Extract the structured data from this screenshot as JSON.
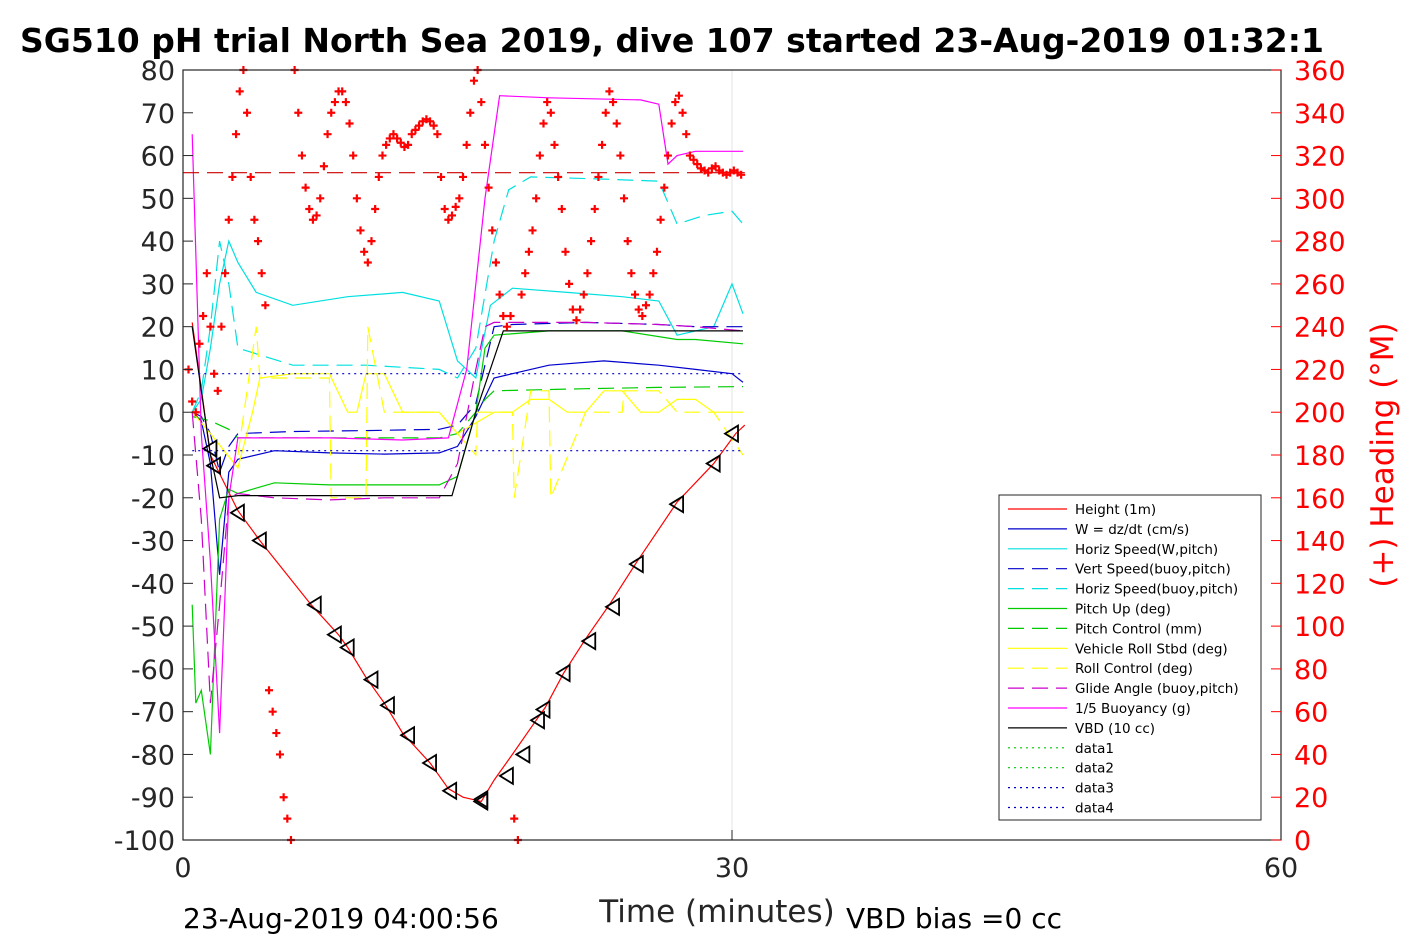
{
  "chart_data": {
    "type": "line",
    "title": "SG510 pH trial North Sea 2019, dive 107 started 23-Aug-2019 01:32:1",
    "xlabel": "Time (minutes)",
    "ylabel_right": "(+) Heading (°M)",
    "xlim": [
      0,
      60
    ],
    "ylim": [
      -100,
      80
    ],
    "ylim_right": [
      0,
      360
    ],
    "x_ticks": [
      "0",
      "30",
      "60"
    ],
    "y_ticks": [
      "80",
      "70",
      "60",
      "50",
      "40",
      "30",
      "20",
      "10",
      "0",
      "-10",
      "-20",
      "-30",
      "-40",
      "-50",
      "-60",
      "-70",
      "-80",
      "-90",
      "-100"
    ],
    "y_right_ticks": [
      "360",
      "340",
      "320",
      "300",
      "280",
      "260",
      "240",
      "220",
      "200",
      "180",
      "160",
      "140",
      "120",
      "100",
      "80",
      "60",
      "40",
      "20",
      "0"
    ],
    "grid": true,
    "legend_position": "lower-right",
    "footer_left": "23-Aug-2019 04:00:56",
    "footer_right": "VBD bias =0 cc",
    "heading_reference_line": 312,
    "series": [
      {
        "name": "Height (1m)",
        "color": "#ff0000",
        "style": "solid",
        "x": [
          0.5,
          1.5,
          3.0,
          4.2,
          7.0,
          8.5,
          9.0,
          10.0,
          11.0,
          12.0,
          13.5,
          14.5,
          15.3,
          16.3,
          17.0,
          18.0,
          19.3,
          19.8,
          20.8,
          22.0,
          23.3,
          24.8,
          27.0,
          29.0,
          30.2,
          30.7
        ],
        "y": [
          21,
          -10,
          -23,
          -30,
          -45,
          -52,
          -55,
          -62,
          -68,
          -75,
          -82,
          -88,
          -90,
          -91,
          -86,
          -80,
          -72,
          -69,
          -61,
          -53,
          -45,
          -35,
          -21,
          -12,
          -5,
          -3
        ]
      },
      {
        "name": "W = dz/dt (cm/s)",
        "color": "#0000cc",
        "style": "solid",
        "x": [
          0.5,
          1.0,
          1.5,
          2.0,
          2.5,
          3.0,
          5.0,
          8.0,
          11.0,
          14.0,
          15.0,
          16.0,
          17.0,
          18.0,
          20.0,
          23.0,
          26.0,
          28.0,
          30.0,
          30.6
        ],
        "y": [
          0,
          -2,
          -12,
          -38,
          -14,
          -11,
          -9,
          -9.5,
          -9.8,
          -9.5,
          -8,
          -1,
          8,
          9,
          11,
          12,
          11,
          10,
          9,
          7
        ]
      },
      {
        "name": "Horiz Speed(W,pitch)",
        "color": "#00e0e0",
        "style": "solid",
        "x": [
          0.5,
          1.0,
          1.5,
          2.0,
          2.5,
          3.0,
          4.0,
          6.0,
          9.0,
          12.0,
          14.0,
          15.0,
          16.0,
          16.8,
          18.0,
          21.0,
          24.0,
          26.0,
          27.0,
          29.0,
          30.0,
          30.6
        ],
        "y": [
          0,
          3,
          15,
          30,
          40,
          35,
          28,
          25,
          27,
          28,
          26,
          12,
          8,
          25,
          29,
          28,
          27,
          26,
          18,
          20,
          30,
          23
        ]
      },
      {
        "name": "Vert Speed(buoy,pitch)",
        "color": "#0000cc",
        "style": "dashed",
        "x": [
          0.5,
          1.0,
          1.5,
          2.0,
          2.5,
          3.0,
          6.0,
          10.0,
          14.0,
          15.0,
          16.0,
          17.0,
          18.0,
          22.0,
          26.0,
          28.0,
          30.6
        ],
        "y": [
          0,
          -1,
          -5,
          -14,
          -8,
          -5,
          -4.5,
          -4.3,
          -4,
          -3,
          2,
          20,
          20.5,
          21,
          20.5,
          20,
          20
        ]
      },
      {
        "name": "Horiz Speed(buoy,pitch)",
        "color": "#00e0e0",
        "style": "dashed",
        "x": [
          0.5,
          1.0,
          1.5,
          2.0,
          2.5,
          3.0,
          6.0,
          10.0,
          14.0,
          15.0,
          16.0,
          17.0,
          17.8,
          19.0,
          23.0,
          26.0,
          27.0,
          28.5,
          30.0,
          30.6
        ],
        "y": [
          0,
          5,
          20,
          40,
          30,
          15,
          11,
          11,
          10,
          8,
          15,
          40,
          52,
          55,
          54.5,
          54,
          44,
          46,
          47,
          44
        ]
      },
      {
        "name": "Pitch Up (deg)",
        "color": "#00cc00",
        "style": "solid",
        "x": [
          0.5,
          0.7,
          1.0,
          1.5,
          2.0,
          2.5,
          3.0,
          5.0,
          8.0,
          11.0,
          14.0,
          15.0,
          16.0,
          16.5,
          17.0,
          20.0,
          24.0,
          27.0,
          28.0,
          30.6
        ],
        "y": [
          -45,
          -68,
          -65,
          -80,
          -25,
          -18,
          -19,
          -16.5,
          -17,
          -17,
          -17,
          -15,
          0,
          15,
          18,
          19,
          19,
          17,
          17,
          16
        ]
      },
      {
        "name": "Pitch Control (mm)",
        "color": "#00cc00",
        "style": "dashed",
        "x": [
          0.5,
          1.5,
          2.5,
          3.0,
          8.0,
          14.0,
          15.0,
          16.0,
          16.5,
          17.0,
          22.0,
          26.0,
          30.6
        ],
        "y": [
          -1,
          -2,
          -4,
          -6,
          -6,
          -6,
          -5,
          0,
          3,
          5,
          5.5,
          5.8,
          6
        ]
      },
      {
        "name": "Vehicle Roll Stbd (deg)",
        "color": "#ffff00",
        "style": "solid",
        "x": [
          0.5,
          1.5,
          3.0,
          3.8,
          4.2,
          6.0,
          8.0,
          9.0,
          9.5,
          10.0,
          11.0,
          12.0,
          14.0,
          15.0,
          17.0,
          18.0,
          19.0,
          20.0,
          21.0,
          22.0,
          23.0,
          24.0,
          25.0,
          26.0,
          27.0,
          28.0,
          29.0,
          30.6
        ],
        "y": [
          0,
          -5,
          -13,
          0,
          8,
          9,
          9,
          0,
          0,
          9,
          9,
          0,
          0,
          -5,
          0,
          0,
          3,
          3,
          0,
          0,
          5,
          5,
          0,
          0,
          3,
          3,
          0,
          0
        ]
      },
      {
        "name": "Roll Control (deg)",
        "color": "#ffff00",
        "style": "dashed",
        "x": [
          3.0,
          4.0,
          4.2,
          6.0,
          8.0,
          8.1,
          10.0,
          10.1,
          11.0,
          14.0,
          16.0,
          16.1,
          18.0,
          18.1,
          19.0,
          20.0,
          20.1,
          22.0,
          24.0,
          24.1,
          26.0,
          27.0,
          29.0,
          30.6
        ],
        "y": [
          -10,
          20,
          8,
          8,
          8,
          -20,
          -20,
          20,
          0,
          0,
          -10,
          0,
          0,
          -20,
          5,
          5,
          -20,
          0,
          0,
          5,
          5,
          0,
          0,
          -10
        ]
      },
      {
        "name": "Glide Angle (buoy,pitch)",
        "color": "#cc00cc",
        "style": "dashed",
        "x": [
          0.5,
          1.0,
          1.5,
          2.0,
          2.5,
          3.0,
          5.0,
          8.0,
          11.0,
          14.0,
          15.0,
          16.0,
          16.5,
          17.0,
          22.0,
          26.0,
          28.0,
          30.6
        ],
        "y": [
          0,
          -25,
          -68,
          -45,
          -20,
          -19,
          -20,
          -20.5,
          -20,
          -20,
          -12,
          10,
          20,
          21,
          21,
          20.5,
          20,
          19
        ]
      },
      {
        "name": "1/5 Buoyancy (g)",
        "color": "#ff00ff",
        "style": "solid",
        "x": [
          0.5,
          1.0,
          1.5,
          2.0,
          2.5,
          3.0,
          4.0,
          8.0,
          12.0,
          14.5,
          15.5,
          16.5,
          17.3,
          20.0,
          25.0,
          26.0,
          26.5,
          27.0,
          28.0,
          30.6
        ],
        "y": [
          65,
          -5,
          -35,
          -75,
          -20,
          -6,
          -6,
          -6,
          -6.5,
          -6,
          10,
          50,
          74,
          73.5,
          73,
          72,
          58,
          60,
          61,
          61
        ]
      },
      {
        "name": "VBD (10 cc)",
        "color": "#000000",
        "style": "solid",
        "x": [
          0.5,
          1.0,
          1.5,
          2.0,
          3.0,
          8.0,
          13.0,
          14.7,
          16.0,
          17.5,
          20.0,
          25.0,
          30.6
        ],
        "y": [
          20,
          5,
          -10,
          -20,
          -19.5,
          -19.5,
          -19.5,
          -19.5,
          0,
          19,
          19,
          19,
          19
        ]
      },
      {
        "name": "data1",
        "color": "#00cc00",
        "style": "dotted",
        "x": [],
        "y": []
      },
      {
        "name": "data2",
        "color": "#00cc00",
        "style": "dotted",
        "x": [],
        "y": []
      },
      {
        "name": "data3",
        "color": "#0000cc",
        "style": "dotted",
        "x": [
          0.5,
          30.6
        ],
        "y": [
          9,
          9
        ]
      },
      {
        "name": "data4",
        "color": "#0000cc",
        "style": "dotted",
        "x": [
          0.5,
          30.6
        ],
        "y": [
          -9,
          -9
        ]
      }
    ],
    "markers": {
      "color": "#000000",
      "x": [
        1.5,
        1.7,
        3.0,
        4.2,
        7.2,
        8.3,
        9.0,
        10.3,
        11.2,
        12.3,
        13.5,
        14.6,
        16.3,
        16.3,
        17.7,
        18.6,
        19.4,
        19.7,
        20.8,
        22.2,
        23.5,
        24.8,
        27.0,
        29.0,
        30.0
      ],
      "y": [
        -8.5,
        -12.5,
        -23.5,
        -30,
        -45,
        -52,
        -55,
        -62.5,
        -68.5,
        -75.5,
        -82,
        -88.5,
        -91,
        -90.5,
        -85,
        -80,
        -72,
        -69.5,
        -61,
        -53.5,
        -45.5,
        -35.5,
        -21.5,
        -12,
        -5
      ]
    },
    "heading": {
      "name": "(+) Heading (°M)",
      "color": "#ff0000",
      "x": [
        0.3,
        0.5,
        0.7,
        0.9,
        1.1,
        1.3,
        1.5,
        1.7,
        1.9,
        2.1,
        2.3,
        2.5,
        2.7,
        2.9,
        3.1,
        3.3,
        3.5,
        3.7,
        3.9,
        4.1,
        4.3,
        4.5,
        4.7,
        4.9,
        5.1,
        5.3,
        5.5,
        5.7,
        5.9,
        6.1,
        6.3,
        6.5,
        6.7,
        6.9,
        7.1,
        7.3,
        7.5,
        7.7,
        7.9,
        8.1,
        8.3,
        8.5,
        8.7,
        8.9,
        9.1,
        9.3,
        9.5,
        9.7,
        9.9,
        10.1,
        10.3,
        10.5,
        10.7,
        10.9,
        11.1,
        11.3,
        11.5,
        11.7,
        11.9,
        12.1,
        12.3,
        12.5,
        12.7,
        12.9,
        13.1,
        13.3,
        13.5,
        13.7,
        13.9,
        14.1,
        14.3,
        14.5,
        14.7,
        14.9,
        15.1,
        15.3,
        15.5,
        15.7,
        15.9,
        16.1,
        16.3,
        16.5,
        16.7,
        16.9,
        17.1,
        17.3,
        17.5,
        17.7,
        17.9,
        18.1,
        18.3,
        18.5,
        18.7,
        18.9,
        19.1,
        19.3,
        19.5,
        19.7,
        19.9,
        20.1,
        20.3,
        20.5,
        20.7,
        20.9,
        21.1,
        21.3,
        21.5,
        21.7,
        21.9,
        22.1,
        22.3,
        22.5,
        22.7,
        22.9,
        23.1,
        23.3,
        23.5,
        23.7,
        23.9,
        24.1,
        24.3,
        24.5,
        24.7,
        24.9,
        25.1,
        25.3,
        25.5,
        25.7,
        25.9,
        26.1,
        26.3,
        26.5,
        26.7,
        26.9,
        27.1,
        27.3,
        27.5,
        27.7,
        27.9,
        28.1,
        28.3,
        28.5,
        28.7,
        28.9,
        29.1,
        29.3,
        29.5,
        29.7,
        29.9,
        30.1,
        30.3,
        30.5
      ],
      "y": [
        220,
        205,
        200,
        232,
        245,
        265,
        240,
        218,
        210,
        240,
        265,
        290,
        310,
        330,
        350,
        360,
        340,
        310,
        290,
        280,
        265,
        250,
        70,
        60,
        50,
        40,
        20,
        10,
        0,
        360,
        340,
        320,
        305,
        295,
        290,
        292,
        300,
        315,
        330,
        340,
        345,
        350,
        350,
        345,
        335,
        320,
        300,
        285,
        275,
        270,
        280,
        295,
        310,
        320,
        325,
        328,
        330,
        328,
        326,
        324,
        325,
        330,
        332,
        334,
        336,
        337,
        336,
        334,
        330,
        310,
        295,
        290,
        292,
        296,
        300,
        310,
        325,
        340,
        355,
        360,
        345,
        325,
        305,
        285,
        270,
        255,
        245,
        240,
        245,
        10,
        0,
        255,
        265,
        275,
        285,
        300,
        320,
        335,
        345,
        340,
        325,
        310,
        295,
        275,
        260,
        248,
        243,
        248,
        255,
        265,
        280,
        295,
        310,
        325,
        340,
        350,
        345,
        335,
        320,
        300,
        280,
        265,
        255,
        248,
        245,
        250,
        255,
        265,
        275,
        290,
        305,
        320,
        335,
        345,
        348,
        340,
        330,
        320,
        318,
        316,
        314,
        313,
        312,
        314,
        315,
        313,
        312,
        311,
        312,
        313,
        312,
        311
      ]
    }
  }
}
